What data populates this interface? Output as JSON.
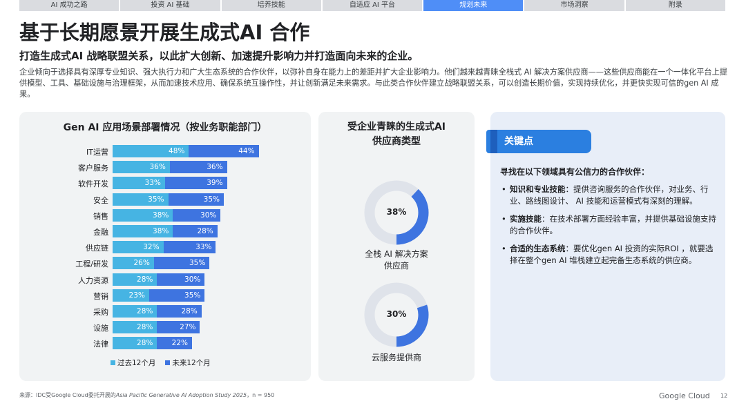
{
  "nav": {
    "tabs": [
      {
        "label": "AI 成功之路",
        "active": false
      },
      {
        "label": "投资 AI 基础",
        "active": false
      },
      {
        "label": "培养技能",
        "active": false
      },
      {
        "label": "自适应 AI 平台",
        "active": false
      },
      {
        "label": "规划未来",
        "active": true
      },
      {
        "label": "市场洞察",
        "active": false
      },
      {
        "label": "附录",
        "active": false
      }
    ]
  },
  "header": {
    "title": "基于长期愿景开展生成式AI 合作",
    "subtitle": "打造生成式AI 战略联盟关系，以此扩大创新、加速提升影响力并打造面向未来的企业。",
    "intro": "企业倾向于选择具有深厚专业知识、强大执行力和广大生态系统的合作伙伴，以弥补自身在能力上的差距并扩大企业影响力。他们越来越青睐全栈式 AI 解决方案供应商——这些供应商能在一个一体化平台上提供模型、工具、基础设施与治理框架，从而加速技术应用、确保系统互操作性，并让创新满足未来需求。与此类合作伙伴建立战略联盟关系，可以创造长期价值，实现持续优化，并更快实现可信的gen AI 成果。"
  },
  "chart_data": [
    {
      "type": "bar",
      "title": "Gen AI 应用场景部署情况（按业务职能部门）",
      "orientation": "horizontal-stacked",
      "categories": [
        "IT运营",
        "客户服务",
        "软件开发",
        "安全",
        "销售",
        "金融",
        "供应链",
        "工程/研发",
        "人力资源",
        "营销",
        "采购",
        "设施",
        "法律"
      ],
      "series": [
        {
          "name": "过去12个月",
          "color": "#46b4e3",
          "values": [
            48,
            36,
            33,
            35,
            38,
            38,
            32,
            26,
            28,
            23,
            28,
            28,
            28
          ]
        },
        {
          "name": "未来12个月",
          "color": "#3e74e0",
          "values": [
            44,
            36,
            39,
            35,
            30,
            28,
            33,
            35,
            30,
            35,
            28,
            27,
            22
          ]
        }
      ],
      "value_suffix": "%",
      "legend": "bottom"
    },
    {
      "type": "pie",
      "title": "受企业青睐的生成式AI 供应商类型",
      "donuts": [
        {
          "label": "全栈 AI 解决方案供应商",
          "value": 38,
          "display": "38%"
        },
        {
          "label": "云服务提供商",
          "value": 30,
          "display": "30%"
        }
      ],
      "colors": {
        "fill": "#3e74e0",
        "track": "#dfe3ea"
      }
    }
  ],
  "chart_text": {
    "mid_title_line1": "受企业青睐的生成式AI",
    "mid_title_line2": "供应商类型",
    "donut1_label_line1": "全栈 AI 解决方案",
    "donut1_label_line2": "供应商",
    "donut2_label": "云服务提供商"
  },
  "key_points": {
    "banner": "关键点",
    "heading": "寻找在以下领域具有公信力的合作伙伴：",
    "items": [
      {
        "bold": "知识和专业技能",
        "text": "：提供咨询服务的合作伙伴，对业务、行业、路线图设计、 AI 技能和运营模式有深刻的理解。"
      },
      {
        "bold": "实施技能",
        "text": "：在技术部署方面经验丰富，并提供基础设施支持的合作伙伴。"
      },
      {
        "bold": "合适的生态系统",
        "text": "：要优化gen AI 投资的实际ROI ，就要选择在整个gen AI 堆栈建立起完备生态系统的供应商。"
      }
    ]
  },
  "footer": {
    "source_prefix": "来源：IDC受Google Cloud委托开展的",
    "source_study": "Asia Pacific Generative AI Adoption Study 2025",
    "source_suffix": "，n = 950",
    "brand": "Google Cloud",
    "page": "12"
  }
}
